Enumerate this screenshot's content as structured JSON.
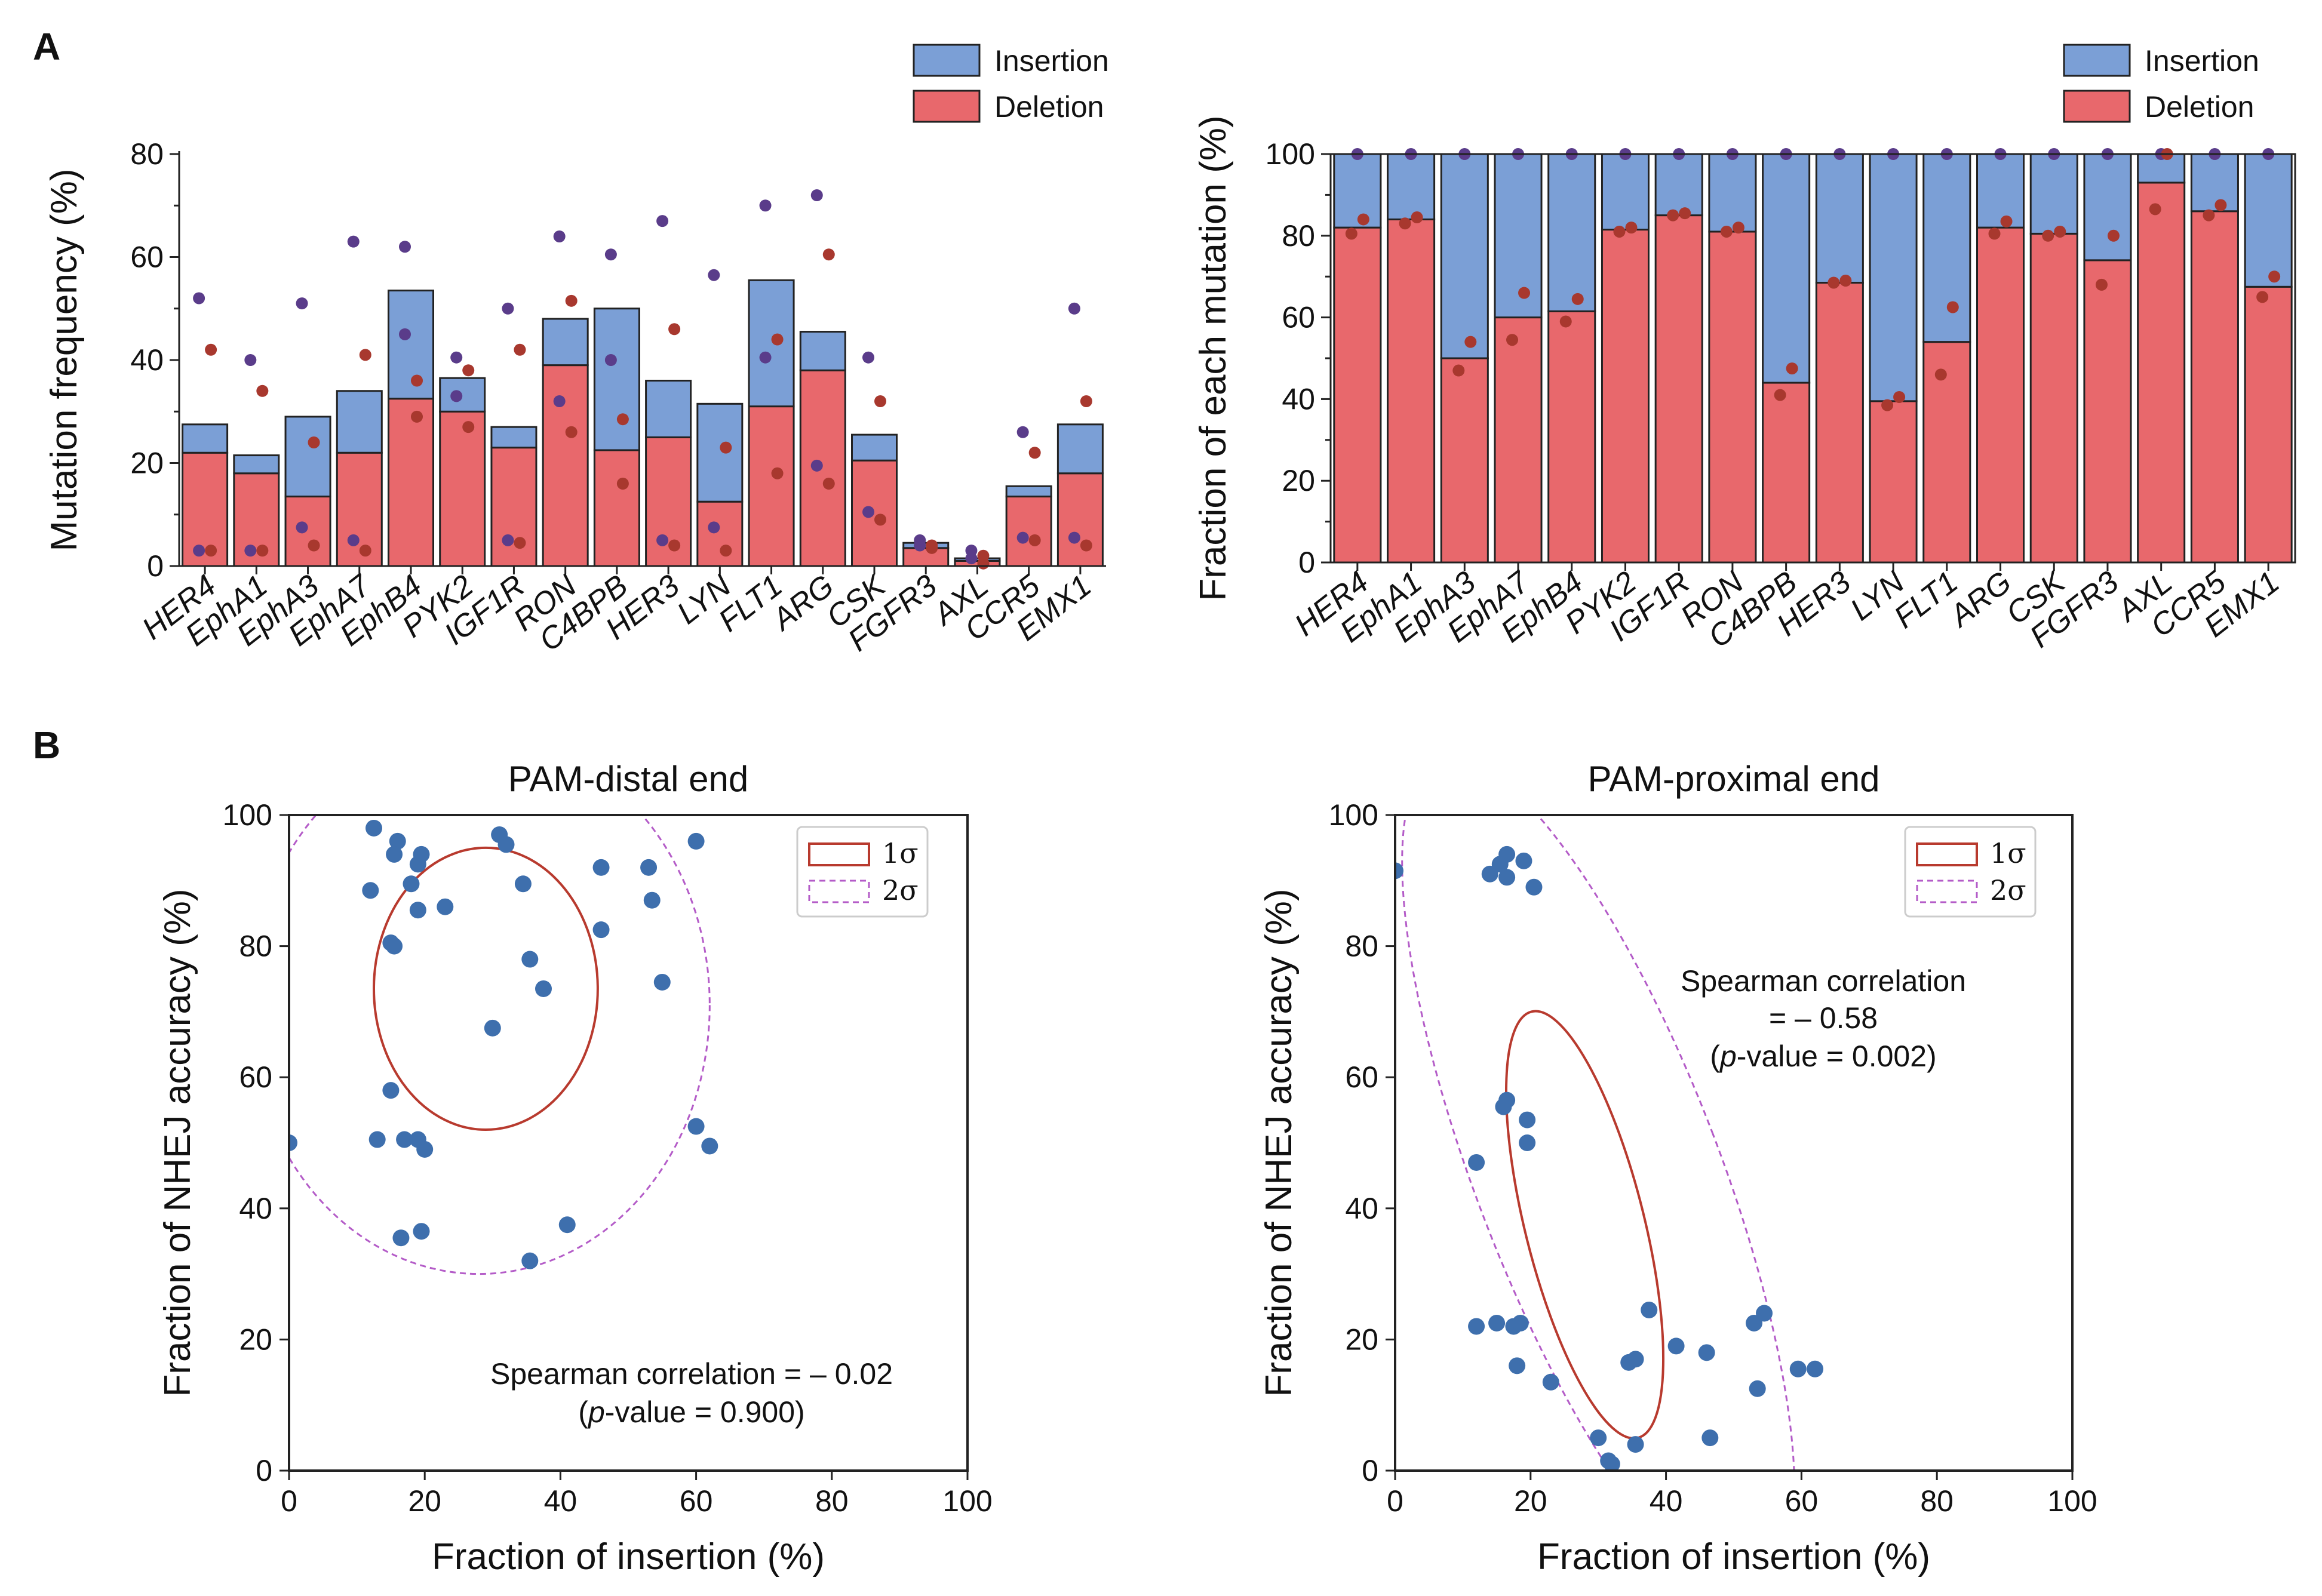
{
  "panel_labels": [
    "A",
    "B"
  ],
  "colors": {
    "insertion": "#7b9fd6",
    "deletion": "#e8686c",
    "dot_ins": "#5a3c8a",
    "dot_del": "#a8382e",
    "scatter": "#3e6fad",
    "sigma1": "#b83a2e",
    "sigma2": "#b45cc8"
  },
  "chart_data": [
    {
      "type": "bar",
      "title": "",
      "ylabel": "Mutation frequency (%)",
      "xlabel": "",
      "ylim": [
        0,
        80
      ],
      "yticks": [
        "0",
        "20",
        "40",
        "60",
        "80"
      ],
      "legend": [
        "Insertion",
        "Deletion"
      ],
      "categories": [
        "HER4",
        "EphA1",
        "EphA3",
        "EphA7",
        "EphB4",
        "PYK2",
        "IGF1R",
        "RON",
        "C4BPB",
        "HER3",
        "LYN",
        "FLT1",
        "ARG",
        "CSK",
        "FGFR3",
        "AXL",
        "CCR5",
        "EMX1"
      ],
      "series": [
        {
          "name": "Deletion",
          "values": [
            22,
            18,
            13.5,
            22,
            32.5,
            30,
            23,
            39,
            22.5,
            25,
            12.5,
            31,
            38,
            20.5,
            3.5,
            1,
            13.5,
            18
          ]
        },
        {
          "name": "Insertion",
          "values": [
            5.5,
            3.5,
            15.5,
            12,
            21,
            6.5,
            4,
            9,
            27.5,
            11,
            19,
            24.5,
            7.5,
            5,
            1,
            0.5,
            2,
            9.5
          ]
        }
      ],
      "replicates_ins": [
        [
          52,
          3
        ],
        [
          40,
          3
        ],
        [
          51,
          7.5
        ],
        [
          63,
          5
        ],
        [
          62,
          45
        ],
        [
          40.5,
          33
        ],
        [
          50,
          5
        ],
        [
          64,
          32
        ],
        [
          60.5,
          40
        ],
        [
          67,
          5
        ],
        [
          56.5,
          7.5
        ],
        [
          70,
          40.5
        ],
        [
          72,
          19.5
        ],
        [
          40.5,
          10.5
        ],
        [
          5,
          4
        ],
        [
          3,
          1.5
        ],
        [
          26,
          5.5
        ],
        [
          50,
          5.5
        ]
      ],
      "replicates_del": [
        [
          42,
          3
        ],
        [
          34,
          3
        ],
        [
          24,
          4
        ],
        [
          41,
          3
        ],
        [
          36,
          29
        ],
        [
          38,
          27
        ],
        [
          42,
          4.5
        ],
        [
          51.5,
          26
        ],
        [
          28.5,
          16
        ],
        [
          46,
          4
        ],
        [
          23,
          3
        ],
        [
          44,
          18
        ],
        [
          60.5,
          16
        ],
        [
          32,
          9
        ],
        [
          4,
          3.5
        ],
        [
          2,
          0.5
        ],
        [
          22,
          5
        ],
        [
          32,
          4
        ]
      ]
    },
    {
      "type": "bar",
      "title": "",
      "ylabel": "Fraction of each mutation (%)",
      "xlabel": "",
      "ylim": [
        0,
        100
      ],
      "yticks": [
        "0",
        "20",
        "40",
        "60",
        "80",
        "100"
      ],
      "legend": [
        "Insertion",
        "Deletion"
      ],
      "categories": [
        "HER4",
        "EphA1",
        "EphA3",
        "EphA7",
        "EphB4",
        "PYK2",
        "IGF1R",
        "RON",
        "C4BPB",
        "HER3",
        "LYN",
        "FLT1",
        "ARG",
        "CSK",
        "FGFR3",
        "AXL",
        "CCR5",
        "EMX1"
      ],
      "series": [
        {
          "name": "Deletion",
          "values": [
            82,
            84,
            50,
            60,
            61.5,
            81.5,
            85,
            81,
            44,
            68.5,
            39.5,
            54,
            82,
            80.5,
            74,
            93,
            86,
            67.5
          ]
        },
        {
          "name": "Insertion",
          "values": [
            18,
            16,
            50,
            40,
            38.5,
            18.5,
            15,
            19,
            56,
            31.5,
            60.5,
            46,
            18,
            19.5,
            26,
            7,
            14,
            32.5
          ]
        }
      ],
      "replicates_del": [
        [
          84,
          80.5
        ],
        [
          84.5,
          83
        ],
        [
          54,
          47
        ],
        [
          66,
          54.5
        ],
        [
          64.5,
          59
        ],
        [
          82,
          81
        ],
        [
          85.5,
          85
        ],
        [
          82,
          81
        ],
        [
          47.5,
          41
        ],
        [
          69,
          68.5
        ],
        [
          40.5,
          38.5
        ],
        [
          62.5,
          46
        ],
        [
          83.5,
          80.5
        ],
        [
          81,
          80
        ],
        [
          80,
          68
        ],
        [
          100,
          86.5
        ],
        [
          87.5,
          85
        ],
        [
          70,
          65
        ]
      ],
      "replicates_total": [
        100,
        100,
        100,
        100,
        100,
        100,
        100,
        100,
        100,
        100,
        100,
        100,
        100,
        100,
        100,
        100,
        100,
        100
      ]
    },
    {
      "type": "scatter",
      "title": "PAM-distal end",
      "xlabel": "Fraction of insertion  (%)",
      "ylabel": "Fraction of NHEJ accuracy  (%)",
      "xlim": [
        0,
        100
      ],
      "ylim": [
        0,
        100
      ],
      "xticks": [
        "0",
        "20",
        "40",
        "60",
        "80",
        "100"
      ],
      "yticks": [
        "0",
        "20",
        "40",
        "60",
        "80",
        "100"
      ],
      "legend": [
        "1σ",
        "2σ"
      ],
      "annotation": [
        "Spearman correlation = – 0.02",
        "(p-value = 0.900)"
      ],
      "points": [
        [
          12.5,
          98
        ],
        [
          12,
          88.5
        ],
        [
          16,
          96
        ],
        [
          15.5,
          94
        ],
        [
          19,
          92.5
        ],
        [
          19.5,
          94
        ],
        [
          18,
          89.5
        ],
        [
          19,
          85.5
        ],
        [
          23,
          86
        ],
        [
          15,
          80.5
        ],
        [
          15.5,
          80
        ],
        [
          31,
          97
        ],
        [
          32,
          95.5
        ],
        [
          34.5,
          89.5
        ],
        [
          46,
          92
        ],
        [
          53,
          92
        ],
        [
          53.5,
          87
        ],
        [
          46,
          82.5
        ],
        [
          60,
          96
        ],
        [
          55,
          74.5
        ],
        [
          35.5,
          78
        ],
        [
          37.5,
          73.5
        ],
        [
          30,
          67.5
        ],
        [
          15,
          58
        ],
        [
          13,
          50.5
        ],
        [
          17,
          50.5
        ],
        [
          19,
          50.5
        ],
        [
          20,
          49
        ],
        [
          60,
          52.5
        ],
        [
          62,
          49.5
        ],
        [
          16.5,
          35.5
        ],
        [
          19.5,
          36.5
        ],
        [
          41,
          37.5
        ],
        [
          35.5,
          32
        ],
        [
          0,
          50
        ]
      ],
      "ellipse_1sigma": {
        "cx": 29,
        "cy": 73.5,
        "rx": 16.5,
        "ry": 21.5,
        "angle_deg": 0
      },
      "ellipse_2sigma": {
        "cx": 28,
        "cy": 71,
        "rx": 34,
        "ry": 41,
        "angle_deg": 0
      }
    },
    {
      "type": "scatter",
      "title": "PAM-proximal end",
      "xlabel": "Fraction of insertion  (%)",
      "ylabel": "Fraction of NHEJ accuracy  (%)",
      "xlim": [
        0,
        100
      ],
      "ylim": [
        0,
        100
      ],
      "xticks": [
        "0",
        "20",
        "40",
        "60",
        "80",
        "100"
      ],
      "yticks": [
        "0",
        "20",
        "40",
        "60",
        "80",
        "100"
      ],
      "legend": [
        "1σ",
        "2σ"
      ],
      "annotation": [
        "Spearman correlation",
        "= – 0.58",
        "(p-value = 0.002)"
      ],
      "points": [
        [
          0,
          91.5
        ],
        [
          14,
          91
        ],
        [
          15.5,
          92.5
        ],
        [
          16.5,
          94
        ],
        [
          16.5,
          90.5
        ],
        [
          19,
          93
        ],
        [
          20.5,
          89
        ],
        [
          12,
          47
        ],
        [
          16,
          55.5
        ],
        [
          16.5,
          56.5
        ],
        [
          19.5,
          53.5
        ],
        [
          19.5,
          50
        ],
        [
          12,
          22
        ],
        [
          15,
          22.5
        ],
        [
          17.5,
          22
        ],
        [
          18.5,
          22.5
        ],
        [
          18,
          16
        ],
        [
          23,
          13.5
        ],
        [
          37.5,
          24.5
        ],
        [
          41.5,
          19
        ],
        [
          34.5,
          16.5
        ],
        [
          35.5,
          17
        ],
        [
          46,
          18
        ],
        [
          53,
          22.5
        ],
        [
          54.5,
          24
        ],
        [
          59.5,
          15.5
        ],
        [
          62,
          15.5
        ],
        [
          53.5,
          12.5
        ],
        [
          30,
          5
        ],
        [
          31.5,
          1.5
        ],
        [
          32,
          1
        ],
        [
          35.5,
          4
        ],
        [
          46.5,
          5
        ]
      ],
      "ellipse_1sigma": {
        "cx": 28,
        "cy": 37.5,
        "rx": 8.8,
        "ry": 33.5,
        "angle_deg": -14
      },
      "ellipse_2sigma": {
        "cx": 30,
        "cy": 45,
        "rx": 18,
        "ry": 68,
        "angle_deg": -21
      }
    }
  ]
}
